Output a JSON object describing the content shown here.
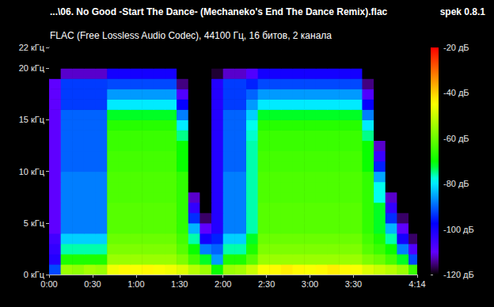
{
  "chart_data": {
    "type": "heatmap",
    "title": "...\\06. No Good -Start The Dance- (Mechaneko's End The Dance Remix).flac",
    "subtitle": "FLAC (Free Lossless Audio Codec), 44100 Гц, 16 битов, 2 канала",
    "annotations": [
      "spek 0.8.1"
    ],
    "grid": false,
    "xlim": [
      0,
      254
    ],
    "xticks": [
      {
        "value": 0,
        "label": "0:00"
      },
      {
        "value": 30,
        "label": "0:30"
      },
      {
        "value": 60,
        "label": "1:00"
      },
      {
        "value": 90,
        "label": "1:30"
      },
      {
        "value": 120,
        "label": "2:00"
      },
      {
        "value": 150,
        "label": "2:30"
      },
      {
        "value": 180,
        "label": "3:00"
      },
      {
        "value": 210,
        "label": "3:30"
      },
      {
        "value": 254,
        "label": "4:14"
      }
    ],
    "ylim": [
      0,
      22
    ],
    "yticks": [
      {
        "value": 0,
        "label": "0 кГц"
      },
      {
        "value": 5,
        "label": "5 кГц"
      },
      {
        "value": 10,
        "label": "10 кГц"
      },
      {
        "value": 15,
        "label": "15 кГц"
      },
      {
        "value": 20,
        "label": "20 кГц"
      },
      {
        "value": 22,
        "label": "22 кГц"
      }
    ],
    "x_bins": [
      0,
      8,
      16,
      24,
      32,
      40,
      48,
      56,
      64,
      72,
      80,
      88,
      96,
      104,
      112,
      120,
      128,
      136,
      144,
      152,
      160,
      168,
      176,
      184,
      192,
      200,
      208,
      216,
      224,
      232,
      240,
      248,
      254
    ],
    "y_bins": [
      0,
      1,
      2,
      3,
      4,
      5,
      6,
      7,
      8,
      9,
      10,
      11,
      12,
      13,
      14,
      15,
      16,
      17,
      18,
      19,
      20,
      21,
      22
    ],
    "cells": [
      [
        -92,
        -55,
        -56,
        -54,
        -55,
        -46,
        -44,
        -45,
        -44,
        -45,
        -46,
        -48,
        -52,
        -55,
        -70,
        -55,
        -54,
        -50,
        -45,
        -44,
        -43,
        -44,
        -45,
        -44,
        -43,
        -44,
        -45,
        -48,
        -50,
        -52,
        -55,
        -65
      ],
      [
        -102,
        -68,
        -68,
        -68,
        -68,
        -55,
        -55,
        -55,
        -55,
        -55,
        -55,
        -58,
        -64,
        -72,
        -86,
        -68,
        -68,
        -62,
        -55,
        -55,
        -55,
        -55,
        -55,
        -55,
        -55,
        -55,
        -55,
        -58,
        -60,
        -64,
        -72,
        -92
      ],
      [
        -104,
        -76,
        -76,
        -76,
        -76,
        -58,
        -58,
        -58,
        -58,
        -58,
        -58,
        -62,
        -70,
        -88,
        -90,
        -76,
        -76,
        -68,
        -58,
        -58,
        -58,
        -58,
        -58,
        -58,
        -58,
        -58,
        -58,
        -62,
        -65,
        -70,
        -88,
        -108
      ],
      [
        -106,
        -82,
        -82,
        -82,
        -82,
        -60,
        -60,
        -60,
        -60,
        -60,
        -60,
        -64,
        -76,
        -100,
        -95,
        -82,
        -82,
        -72,
        -60,
        -60,
        -60,
        -60,
        -60,
        -60,
        -60,
        -60,
        -60,
        -64,
        -68,
        -76,
        -100,
        -116
      ],
      [
        -110,
        -88,
        -88,
        -88,
        -88,
        -62,
        -62,
        -62,
        -62,
        -62,
        -62,
        -66,
        -84,
        -110,
        -102,
        -88,
        -88,
        -76,
        -62,
        -62,
        -62,
        -62,
        -62,
        -62,
        -62,
        -62,
        -62,
        -66,
        -72,
        -84,
        -110,
        -120
      ],
      [
        -110,
        -88,
        -88,
        -88,
        -88,
        -62,
        -62,
        -62,
        -62,
        -62,
        -62,
        -66,
        -94,
        -116,
        -102,
        -88,
        -88,
        -76,
        -62,
        -62,
        -62,
        -62,
        -62,
        -62,
        -62,
        -62,
        -62,
        -66,
        -72,
        -94,
        -116,
        -120
      ],
      [
        -110,
        -88,
        -88,
        -88,
        -88,
        -62,
        -62,
        -62,
        -62,
        -62,
        -62,
        -66,
        -104,
        -120,
        -102,
        -88,
        -88,
        -76,
        -62,
        -62,
        -62,
        -62,
        -62,
        -62,
        -62,
        -62,
        -62,
        -66,
        -72,
        -104,
        -120,
        -120
      ],
      [
        -110,
        -88,
        -88,
        -88,
        -88,
        -63,
        -63,
        -63,
        -63,
        -63,
        -63,
        -66,
        -112,
        -120,
        -102,
        -88,
        -88,
        -76,
        -63,
        -63,
        -63,
        -63,
        -63,
        -63,
        -63,
        -63,
        -63,
        -66,
        -78,
        -112,
        -120,
        -120
      ],
      [
        -110,
        -88,
        -88,
        -88,
        -88,
        -63,
        -63,
        -63,
        -63,
        -63,
        -63,
        -66,
        -120,
        -120,
        -102,
        -88,
        -88,
        -76,
        -63,
        -63,
        -63,
        -63,
        -63,
        -63,
        -63,
        -63,
        -63,
        -66,
        -78,
        -120,
        -120,
        -120
      ],
      [
        -110,
        -88,
        -88,
        -88,
        -88,
        -63,
        -63,
        -63,
        -63,
        -63,
        -63,
        -66,
        -120,
        -120,
        -102,
        -88,
        -88,
        -76,
        -63,
        -63,
        -63,
        -63,
        -63,
        -63,
        -63,
        -63,
        -63,
        -66,
        -85,
        -120,
        -120,
        -120
      ],
      [
        -110,
        -90,
        -90,
        -90,
        -90,
        -64,
        -64,
        -64,
        -64,
        -64,
        -64,
        -70,
        -120,
        -120,
        -102,
        -90,
        -90,
        -76,
        -64,
        -64,
        -64,
        -64,
        -64,
        -64,
        -64,
        -64,
        -64,
        -70,
        -95,
        -120,
        -120,
        -120
      ],
      [
        -110,
        -90,
        -90,
        -90,
        -90,
        -64,
        -64,
        -64,
        -64,
        -64,
        -64,
        -70,
        -120,
        -120,
        -102,
        -90,
        -90,
        -76,
        -64,
        -64,
        -64,
        -64,
        -64,
        -64,
        -64,
        -64,
        -64,
        -70,
        -105,
        -120,
        -120,
        -120
      ],
      [
        -110,
        -90,
        -90,
        -90,
        -90,
        -65,
        -65,
        -65,
        -65,
        -65,
        -65,
        -70,
        -120,
        -120,
        -102,
        -90,
        -90,
        -76,
        -65,
        -65,
        -65,
        -65,
        -65,
        -65,
        -65,
        -65,
        -65,
        -70,
        -112,
        -120,
        -120,
        -120
      ],
      [
        -110,
        -90,
        -90,
        -90,
        -90,
        -65,
        -65,
        -65,
        -65,
        -65,
        -65,
        -75,
        -120,
        -120,
        -102,
        -90,
        -90,
        -77,
        -65,
        -65,
        -65,
        -65,
        -65,
        -65,
        -65,
        -65,
        -65,
        -75,
        -120,
        -120,
        -120,
        -120
      ],
      [
        -110,
        -90,
        -90,
        -90,
        -90,
        -67,
        -67,
        -67,
        -67,
        -67,
        -67,
        -80,
        -120,
        -120,
        -102,
        -90,
        -90,
        -78,
        -67,
        -67,
        -67,
        -67,
        -67,
        -67,
        -67,
        -67,
        -67,
        -80,
        -120,
        -120,
        -120,
        -120
      ],
      [
        -110,
        -90,
        -90,
        -90,
        -90,
        -72,
        -72,
        -72,
        -72,
        -72,
        -72,
        -88,
        -120,
        -120,
        -102,
        -90,
        -90,
        -82,
        -72,
        -72,
        -72,
        -72,
        -72,
        -72,
        -72,
        -72,
        -72,
        -88,
        -120,
        -120,
        -120,
        -120
      ],
      [
        -110,
        -93,
        -93,
        -93,
        -93,
        -80,
        -80,
        -80,
        -80,
        -80,
        -80,
        -98,
        -120,
        -120,
        -102,
        -93,
        -93,
        -86,
        -80,
        -80,
        -80,
        -80,
        -80,
        -80,
        -80,
        -80,
        -80,
        -98,
        -120,
        -120,
        -120,
        -120
      ],
      [
        -110,
        -93,
        -93,
        -93,
        -93,
        -86,
        -86,
        -86,
        -86,
        -86,
        -86,
        -108,
        -120,
        -120,
        -102,
        -93,
        -93,
        -90,
        -86,
        -86,
        -86,
        -86,
        -86,
        -86,
        -86,
        -86,
        -86,
        -108,
        -120,
        -120,
        -120,
        -120
      ],
      [
        -110,
        -93,
        -93,
        -93,
        -93,
        -92,
        -92,
        -92,
        -92,
        -92,
        -92,
        -115,
        -120,
        -120,
        -102,
        -93,
        -93,
        -95,
        -92,
        -92,
        -92,
        -92,
        -92,
        -92,
        -92,
        -92,
        -92,
        -115,
        -120,
        -120,
        -120,
        -120
      ],
      [
        -120,
        -112,
        -112,
        -112,
        -112,
        -100,
        -100,
        -100,
        -100,
        -100,
        -100,
        -120,
        -120,
        -120,
        -118,
        -112,
        -112,
        -108,
        -100,
        -100,
        -100,
        -100,
        -100,
        -100,
        -100,
        -100,
        -100,
        -120,
        -120,
        -120,
        -120,
        -120
      ],
      [
        -120,
        -120,
        -120,
        -120,
        -120,
        -120,
        -120,
        -120,
        -120,
        -120,
        -120,
        -120,
        -120,
        -120,
        -120,
        -120,
        -120,
        -120,
        -120,
        -120,
        -120,
        -120,
        -120,
        -120,
        -120,
        -120,
        -120,
        -120,
        -120,
        -120,
        -120,
        -120
      ],
      [
        -120,
        -120,
        -120,
        -120,
        -120,
        -120,
        -120,
        -120,
        -120,
        -120,
        -120,
        -120,
        -120,
        -120,
        -120,
        -120,
        -120,
        -120,
        -120,
        -120,
        -120,
        -120,
        -120,
        -120,
        -120,
        -120,
        -120,
        -120,
        -120,
        -120,
        -120,
        -120
      ]
    ],
    "colorbar_range": [
      -120,
      -20
    ],
    "colorbar_ticks": [
      {
        "value": -20,
        "label": "-20 дБ"
      },
      {
        "value": -40,
        "label": "-40 дБ"
      },
      {
        "value": -60,
        "label": "-60 дБ"
      },
      {
        "value": -80,
        "label": "-80 дБ"
      },
      {
        "value": -100,
        "label": "-100 дБ"
      },
      {
        "value": -120,
        "label": "-120 дБ"
      }
    ]
  }
}
